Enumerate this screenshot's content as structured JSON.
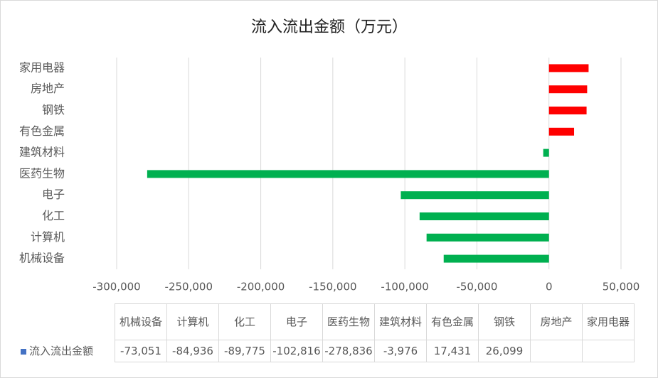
{
  "chart_data": {
    "type": "barh",
    "title": "流入流出金额（万元）",
    "categories": [
      "机械设备",
      "计算机",
      "化工",
      "电子",
      "医药生物",
      "建筑材料",
      "有色金属",
      "钢铁",
      "房地产",
      "家用电器"
    ],
    "series": [
      {
        "name": "流入流出金额",
        "values": [
          -73051,
          -84936,
          -89775,
          -102816,
          -278836,
          -3976,
          17431,
          26099,
          26500,
          27500
        ],
        "value_labels": [
          "-73,051",
          "-84,936",
          "-89,775",
          "-102,816",
          "-278,836",
          "-3,976",
          "17,431",
          "26,099",
          null,
          null
        ],
        "color": "#4472c4"
      }
    ],
    "positive_color": "#ff0000",
    "negative_color": "#00b050",
    "xlim": [
      -300000,
      50000
    ],
    "xticks": [
      {
        "value": -300000,
        "label": "-300,000"
      },
      {
        "value": -250000,
        "label": "-250,000"
      },
      {
        "value": -200000,
        "label": "-200,000"
      },
      {
        "value": -150000,
        "label": "-150,000"
      },
      {
        "value": -100000,
        "label": "-100,000"
      },
      {
        "value": -50000,
        "label": "-50,000"
      },
      0,
      {
        "value": 50000,
        "label": "50,000"
      }
    ],
    "grid": true
  }
}
